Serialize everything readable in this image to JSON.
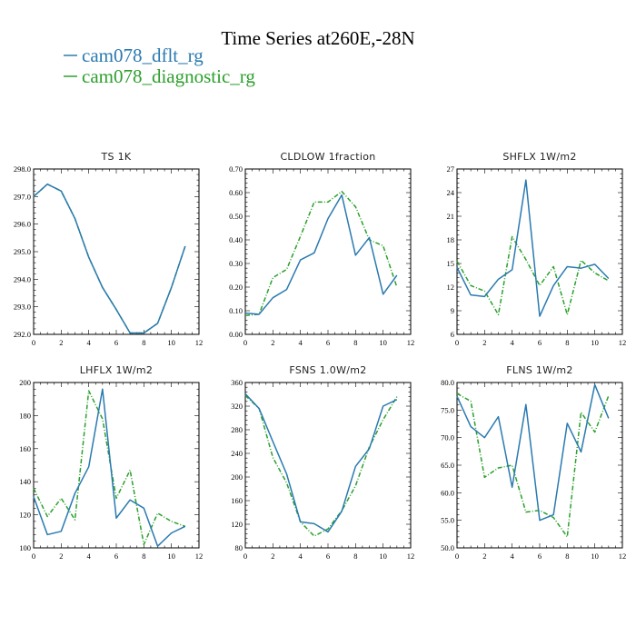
{
  "figure": {
    "title": "Time Series at260E,-28N",
    "legend": [
      {
        "label": "cam078_dflt_rg",
        "color": "#2a7ab0"
      },
      {
        "label": "cam078_diagnostic_rg",
        "color": "#2ca02c"
      }
    ]
  },
  "chart_data": [
    {
      "type": "line",
      "title": "TS   1K",
      "x": [
        0,
        1,
        2,
        3,
        4,
        5,
        6,
        7,
        8,
        9,
        10,
        11
      ],
      "xlim": [
        0,
        12
      ],
      "xticks": [
        "0",
        "2",
        "4",
        "6",
        "8",
        "10",
        "12"
      ],
      "ylim": [
        292.0,
        298.0
      ],
      "yticks": [
        "292.0",
        "293.0",
        "294.0",
        "295.0",
        "296.0",
        "297.0",
        "298.0"
      ],
      "series": [
        {
          "name": "cam078_dflt_rg",
          "values": [
            297.0,
            297.45,
            297.2,
            296.2,
            294.8,
            293.7,
            292.9,
            292.05,
            292.05,
            292.4,
            293.7,
            295.2
          ]
        },
        {
          "name": "cam078_diagnostic_rg",
          "values": [
            297.0,
            297.45,
            297.2,
            296.2,
            294.8,
            293.7,
            292.9,
            292.05,
            292.05,
            292.4,
            293.7,
            295.2
          ]
        }
      ]
    },
    {
      "type": "line",
      "title": "CLDLOW   1fraction",
      "x": [
        0,
        1,
        2,
        3,
        4,
        5,
        6,
        7,
        8,
        9,
        10,
        11
      ],
      "xlim": [
        0,
        12
      ],
      "xticks": [
        "0",
        "2",
        "4",
        "6",
        "8",
        "10",
        "12"
      ],
      "ylim": [
        0.0,
        0.7
      ],
      "yticks": [
        "0.00",
        "0.10",
        "0.20",
        "0.30",
        "0.40",
        "0.50",
        "0.60",
        "0.70"
      ],
      "series": [
        {
          "name": "cam078_dflt_rg",
          "values": [
            0.09,
            0.085,
            0.155,
            0.19,
            0.315,
            0.345,
            0.49,
            0.59,
            0.335,
            0.41,
            0.17,
            0.25
          ]
        },
        {
          "name": "cam078_diagnostic_rg",
          "values": [
            0.08,
            0.085,
            0.24,
            0.275,
            0.415,
            0.56,
            0.56,
            0.605,
            0.54,
            0.4,
            0.375,
            0.2
          ]
        }
      ]
    },
    {
      "type": "line",
      "title": "SHFLX   1W/m2",
      "x": [
        0,
        1,
        2,
        3,
        4,
        5,
        6,
        7,
        8,
        9,
        10,
        11
      ],
      "xlim": [
        0,
        12
      ],
      "xticks": [
        "0",
        "2",
        "4",
        "6",
        "8",
        "10",
        "12"
      ],
      "ylim": [
        6,
        27
      ],
      "yticks": [
        "6",
        "9",
        "12",
        "15",
        "18",
        "21",
        "24",
        "27"
      ],
      "series": [
        {
          "name": "cam078_dflt_rg",
          "values": [
            14.5,
            11.0,
            10.8,
            13.0,
            14.2,
            25.6,
            8.3,
            12.2,
            14.6,
            14.4,
            14.9,
            13.1
          ]
        },
        {
          "name": "cam078_diagnostic_rg",
          "values": [
            15.3,
            12.2,
            11.5,
            8.5,
            18.4,
            15.5,
            12.2,
            14.6,
            8.5,
            15.4,
            13.8,
            12.8
          ]
        }
      ]
    },
    {
      "type": "line",
      "title": "LHFLX   1W/m2",
      "x": [
        0,
        1,
        2,
        3,
        4,
        5,
        6,
        7,
        8,
        9,
        10,
        11
      ],
      "xlim": [
        0,
        12
      ],
      "xticks": [
        "0",
        "2",
        "4",
        "6",
        "8",
        "10",
        "12"
      ],
      "ylim": [
        100,
        200
      ],
      "yticks": [
        "100",
        "120",
        "140",
        "160",
        "180",
        "200"
      ],
      "series": [
        {
          "name": "cam078_dflt_rg",
          "values": [
            131,
            108,
            110,
            133,
            149,
            196,
            118,
            129,
            124,
            101,
            109,
            113
          ]
        },
        {
          "name": "cam078_diagnostic_rg",
          "values": [
            136,
            119,
            130,
            117,
            195,
            178,
            130,
            147,
            102,
            121,
            116,
            113
          ]
        }
      ]
    },
    {
      "type": "line",
      "title": "FSNS   1.0W/m2",
      "x": [
        0,
        1,
        2,
        3,
        4,
        5,
        6,
        7,
        8,
        9,
        10,
        11
      ],
      "xlim": [
        0,
        12
      ],
      "xticks": [
        "0",
        "2",
        "4",
        "6",
        "8",
        "10",
        "12"
      ],
      "ylim": [
        80,
        360
      ],
      "yticks": [
        "80",
        "120",
        "160",
        "200",
        "240",
        "280",
        "320",
        "360"
      ],
      "series": [
        {
          "name": "cam078_dflt_rg",
          "values": [
            341,
            316,
            260,
            205,
            124,
            121,
            107,
            142,
            218,
            248,
            320,
            331
          ]
        },
        {
          "name": "cam078_diagnostic_rg",
          "values": [
            338,
            316,
            233,
            190,
            124,
            100,
            112,
            143,
            185,
            251,
            297,
            336
          ]
        }
      ]
    },
    {
      "type": "line",
      "title": "FLNS   1W/m2",
      "x": [
        0,
        1,
        2,
        3,
        4,
        5,
        6,
        7,
        8,
        9,
        10,
        11
      ],
      "xlim": [
        0,
        12
      ],
      "xticks": [
        "0",
        "2",
        "4",
        "6",
        "8",
        "10",
        "12"
      ],
      "ylim": [
        50.0,
        80.0
      ],
      "yticks": [
        "50.0",
        "55.0",
        "60.0",
        "65.0",
        "70.0",
        "75.0",
        "80.0"
      ],
      "series": [
        {
          "name": "cam078_dflt_rg",
          "values": [
            77.5,
            72.0,
            70.0,
            73.8,
            61.0,
            76.0,
            55.0,
            56.0,
            72.6,
            67.4,
            79.6,
            73.5
          ]
        },
        {
          "name": "cam078_diagnostic_rg",
          "values": [
            78.0,
            76.6,
            62.8,
            64.5,
            65.0,
            56.5,
            56.8,
            55.5,
            52.0,
            74.6,
            71.0,
            77.6
          ]
        }
      ]
    }
  ]
}
